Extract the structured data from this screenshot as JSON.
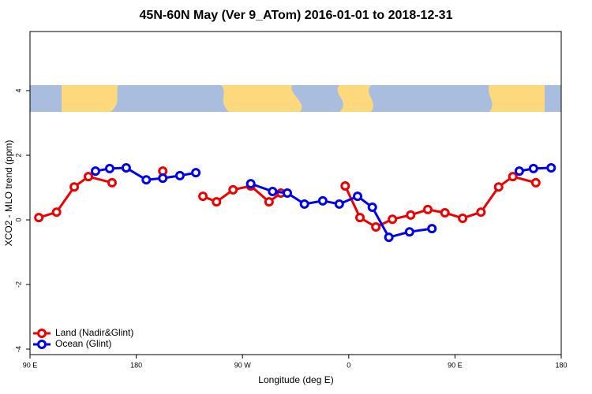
{
  "chart_data": {
    "type": "line",
    "title": "45N-60N May (Ver 9_ATom)   2016-01-01 to 2018-12-31",
    "x_label": "Longitude (deg E)",
    "y_label": "XCO2 - MLO trend (ppm)",
    "xlim": [
      90,
      540
    ],
    "ylim": [
      -4.17,
      5.83
    ],
    "xticks": [
      {
        "value": 90,
        "label": "90 E"
      },
      {
        "value": 180,
        "label": "180"
      },
      {
        "value": 270,
        "label": "90 W"
      },
      {
        "value": 360,
        "label": "0"
      },
      {
        "value": 450,
        "label": "90 E"
      },
      {
        "value": 540,
        "label": "180"
      }
    ],
    "yticks": [
      -4,
      -2,
      0,
      2,
      4
    ],
    "legend": "bottom-left",
    "series": [
      {
        "name": "Land (Nadir&Glint)",
        "color": "#ee0000",
        "x": [
          97.5,
          112.5,
          127.5,
          139.5,
          159.5,
          null,
          202.5,
          null,
          236.5,
          248,
          262,
          277,
          292.5,
          302.5,
          null,
          357,
          369.5,
          383,
          397,
          412.5,
          427,
          441.5,
          456.5,
          472,
          487,
          499,
          518.5
        ],
        "values": [
          0.07,
          0.24,
          1.02,
          1.34,
          1.15,
          null,
          1.51,
          null,
          0.73,
          0.56,
          0.93,
          1.05,
          0.56,
          0.83,
          null,
          1.05,
          0.07,
          -0.22,
          0.02,
          0.15,
          0.32,
          0.22,
          0.05,
          0.24,
          1.02,
          1.34,
          1.15
        ]
      },
      {
        "name": "Ocean (Glint)",
        "color": "#0000ee",
        "x": [
          145.5,
          157.5,
          171.5,
          188.5,
          202.5,
          217,
          230.5,
          null,
          277,
          295.5,
          308,
          322.5,
          338,
          352,
          367.5,
          380,
          394,
          411.5,
          430.5,
          null,
          504.5,
          516.5,
          531.5
        ],
        "values": [
          1.51,
          1.59,
          1.61,
          1.24,
          1.29,
          1.37,
          1.46,
          null,
          1.12,
          0.88,
          0.83,
          0.49,
          0.59,
          0.49,
          0.73,
          0.39,
          -0.54,
          -0.37,
          -0.27,
          null,
          1.51,
          1.59,
          1.61
        ]
      }
    ]
  }
}
